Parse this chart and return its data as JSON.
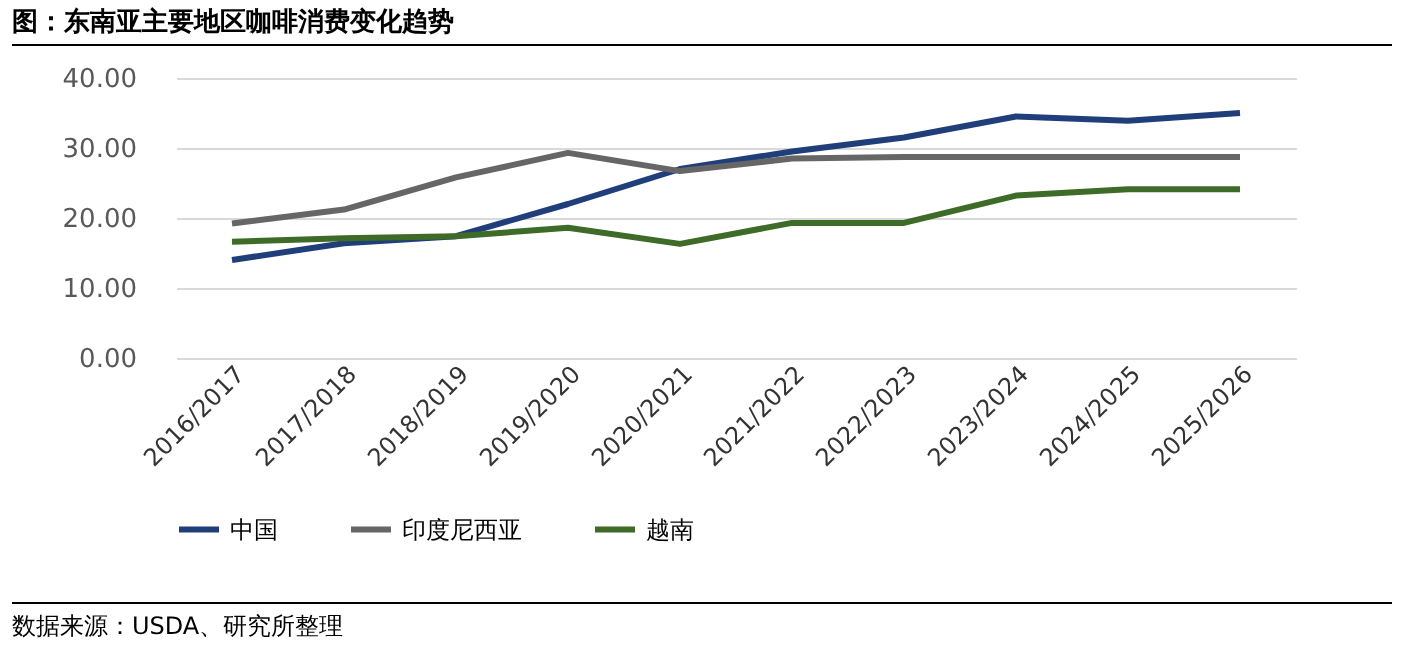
{
  "chart_data": {
    "type": "line",
    "title": "图：东南亚主要地区咖啡消费变化趋势",
    "categories": [
      "2016/2017",
      "2017/2018",
      "2018/2019",
      "2019/2020",
      "2020/2021",
      "2021/2022",
      "2022/2023",
      "2023/2024",
      "2024/2025",
      "2025/2026"
    ],
    "series": [
      {
        "name": "中国",
        "color": "#203f7a",
        "values": [
          14.0,
          16.4,
          17.4,
          22.0,
          27.0,
          29.5,
          31.5,
          34.5,
          33.9,
          35.0
        ]
      },
      {
        "name": "印度尼西亚",
        "color": "#666666",
        "values": [
          19.2,
          21.2,
          25.8,
          29.3,
          26.7,
          28.5,
          28.7,
          28.7,
          28.7,
          28.7
        ]
      },
      {
        "name": "越南",
        "color": "#3e6b27",
        "values": [
          16.6,
          17.1,
          17.4,
          18.6,
          16.3,
          19.3,
          19.3,
          23.2,
          24.1,
          24.1
        ]
      }
    ],
    "ylim": [
      0,
      40
    ],
    "yticks": [
      {
        "value": 0,
        "label": "0.00"
      },
      {
        "value": 10,
        "label": "10.00"
      },
      {
        "value": 20,
        "label": "20.00"
      },
      {
        "value": 30,
        "label": "30.00"
      },
      {
        "value": 40,
        "label": "40.00"
      }
    ],
    "grid": "y",
    "legend": "bottom",
    "marker": "none",
    "line_style": "solid",
    "annotations": [
      "数据来源：USDA、研究所整理"
    ]
  }
}
